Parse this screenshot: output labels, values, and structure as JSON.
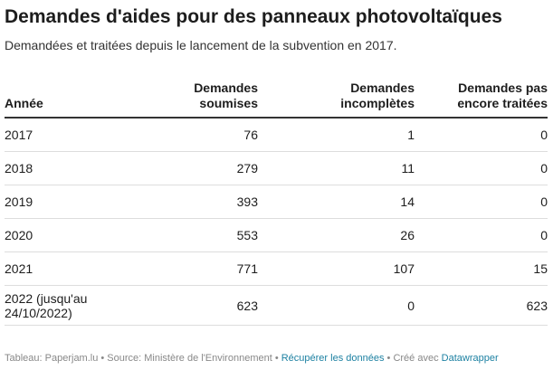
{
  "header": {
    "title": "Demandes d'aides pour des panneaux photovoltaïques",
    "subtitle": "Demandées et traitées depuis le lancement de la subvention en 2017."
  },
  "chart_data": {
    "type": "table",
    "columns": [
      "Année",
      "Demandes\nsoumises",
      "Demandes\nincomplètes",
      "Demandes pas\nencore traitées"
    ],
    "rows": [
      [
        "2017",
        "76",
        "1",
        "0"
      ],
      [
        "2018",
        "279",
        "11",
        "0"
      ],
      [
        "2019",
        "393",
        "14",
        "0"
      ],
      [
        "2020",
        "553",
        "26",
        "0"
      ],
      [
        "2021",
        "771",
        "107",
        "15"
      ],
      [
        "2022 (jusqu'au\n24/10/2022)",
        "623",
        "0",
        "623"
      ]
    ]
  },
  "footer": {
    "source_text": "Tableau: Paperjam.lu • Source: Ministère de l'Environnement • ",
    "download_link": "Récupérer les données",
    "created_text": " • Créé avec ",
    "tool_link": "Datawrapper"
  }
}
